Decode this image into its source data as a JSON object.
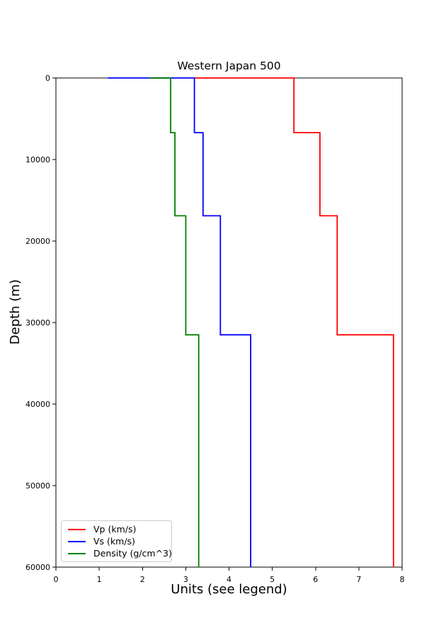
{
  "figure": {
    "background": "#ffffff",
    "axis_color": "#000000"
  },
  "chart_data": {
    "type": "line",
    "drawstyle": "steps (layered 1-D earth model, depth increases downward)",
    "title": "Western Japan 500",
    "xlabel": "Units (see legend)",
    "ylabel": "Depth (m)",
    "xlim": [
      0,
      8
    ],
    "depth_range_m": [
      0,
      60000
    ],
    "y_axis_inverted": true,
    "grid": false,
    "x_ticks": [
      0,
      1,
      2,
      3,
      4,
      5,
      6,
      7,
      8
    ],
    "y_ticks": [
      0,
      10000,
      20000,
      30000,
      40000,
      50000,
      60000
    ],
    "layer_top_depths_m": [
      0,
      6700,
      16900,
      31500
    ],
    "bottom_depth_m": 60000,
    "series": [
      {
        "name": "Vp (km/s)",
        "slug": "vp",
        "color": "#ff0000",
        "surface_leading_x": 3.2,
        "layer_values": [
          5.5,
          6.1,
          6.5,
          7.8
        ]
      },
      {
        "name": "Vs (km/s)",
        "slug": "vs",
        "color": "#0000ff",
        "surface_leading_x": 1.2,
        "layer_values": [
          3.2,
          3.4,
          3.8,
          4.5
        ]
      },
      {
        "name": "Density (g/cm^3)",
        "slug": "density",
        "color": "#008000",
        "surface_leading_x": 2.15,
        "layer_values": [
          2.65,
          2.75,
          3.0,
          3.3
        ]
      }
    ],
    "legend": {
      "position": "lower left"
    }
  }
}
